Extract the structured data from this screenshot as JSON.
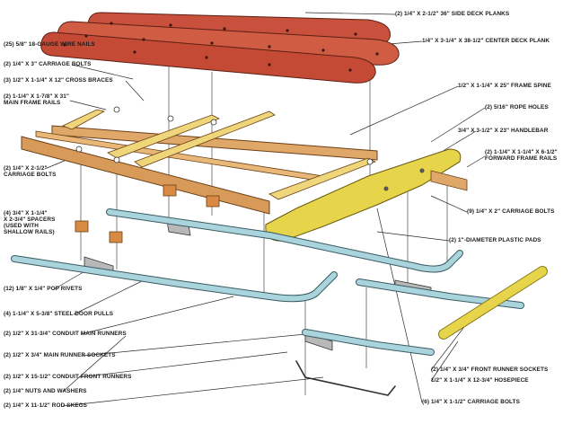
{
  "labels": {
    "side_deck_planks": "(2) 1/4\" X 2-1/2\" 36\" SIDE DECK PLANKS",
    "center_deck_plank": "1/4\" X 3-1/4\" X 38-1/2\" CENTER DECK PLANK",
    "wire_nails": "(25) 5/8\" 18-GAUGE WIRE NAILS",
    "carriage_bolts_3": "(2) 1/4\" X 3\" CARRIAGE BOLTS",
    "cross_braces": "(3) 1/2\" X 1-1/4\" X 12\" CROSS BRACES",
    "main_frame_rails_1": "(2) 1-1/4\" X 1-7/8\" X 31\"",
    "main_frame_rails_2": "MAIN FRAME RAILS",
    "frame_spine": "1/2\" X 1-1/4\" X 25\" FRAME SPINE",
    "rope_holes": "(2) 5/16\" ROPE HOLES",
    "handlebar": "3/4\" X 3-1/2\" X 23\" HANDLEBAR",
    "forward_frame_rails_1": "(2) 1-1/4\" X 1-1/4\" X 6-1/2\"",
    "forward_frame_rails_2": "FORWARD FRAME RAILS",
    "carriage_bolts_2_5_1": "(2) 1/4\" X 2-1/2\"",
    "carriage_bolts_2_5_2": "CARRIAGE BOLTS",
    "carriage_bolts_2": "(9) 1/4\" X 2\" CARRIAGE BOLTS",
    "spacers_1": "(4) 3/4\" X 1-1/4\"",
    "spacers_2": "X 2-3/4\" SPACERS",
    "spacers_3": "(USED WITH",
    "spacers_4": "SHALLOW RAILS)",
    "plastic_pads": "(2) 1\"-DIAMETER PLASTIC PADS",
    "pop_rivets": "(12) 1/8\" X 1/4\" POP RIVETS",
    "door_pulls": "(4) 1-1/4\" X 5-3/8\" STEEL DOOR PULLS",
    "conduit_main_runners": "(2) 1/2\" X 31-3/4\" CONDUIT MAIN RUNNERS",
    "main_runner_sockets": "(2) 1/2\" X 3/4\" MAIN RUNNER SOCKETS",
    "conduit_front_runners": "(2) 1/2\" X 15-1/2\" CONDUIT FRONT RUNNERS",
    "nuts_washers": "(2) 1/4\" NUTS AND WASHERS",
    "rod_skegs": "(2) 1/4\" X 11-1/2\" ROD SKEGS",
    "front_runner_sockets": "(2) 1/4\" X 3/4\" FRONT RUNNER SOCKETS",
    "hosepiece": "1/2\" X 1-1/4\" X 12-3/4\" HOSEPIECE",
    "carriage_bolts_1_5": "(6) 1/4\" X 1-1/2\" CARRIAGE BOLTS"
  },
  "colors": {
    "deck_plank": "#c8503c",
    "frame_wood": "#e0a868",
    "cross_brace": "#f0d67a",
    "handlebar": "#e6d44a",
    "conduit": "#a9d4dc",
    "block": "#d88a44",
    "metal": "#707070",
    "leader": "#2a2a2a"
  }
}
